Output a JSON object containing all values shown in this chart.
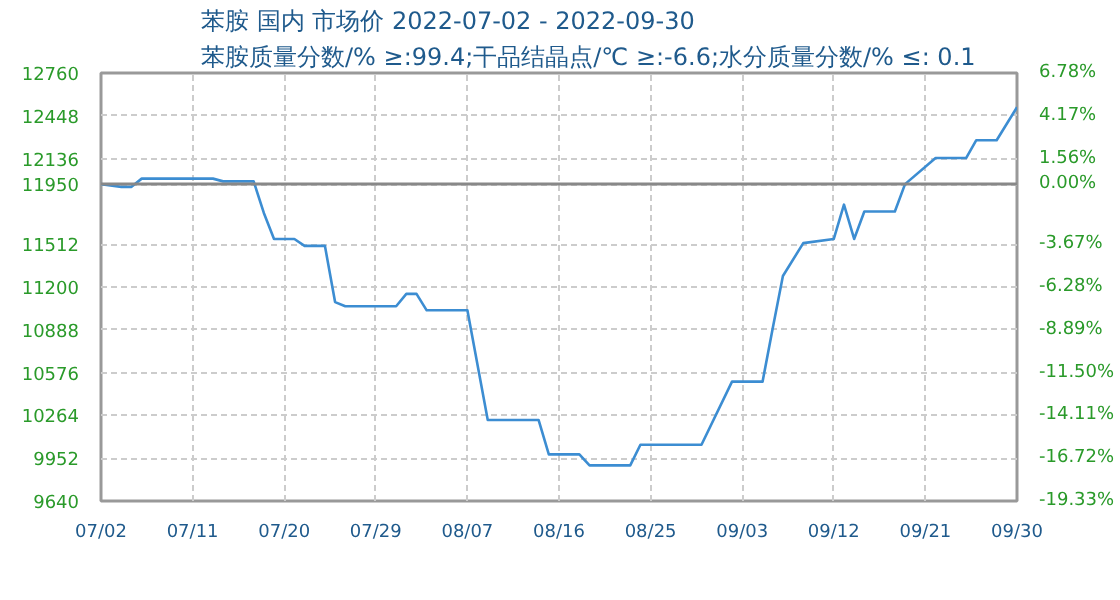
{
  "chart_data": {
    "type": "line",
    "title": "苯胺 国内 市场价 2022-07-02 - 2022-09-30",
    "subtitle": "苯胺质量分数/% ≥:99.4;干品结晶点/℃  ≥:-6.6;水分质量分数/%  ≤: 0.1",
    "x": [
      "2022-07-02",
      "2022-07-04",
      "2022-07-05",
      "2022-07-06",
      "2022-07-13",
      "2022-07-14",
      "2022-07-17",
      "2022-07-18",
      "2022-07-19",
      "2022-07-21",
      "2022-07-22",
      "2022-07-24",
      "2022-07-25",
      "2022-07-26",
      "2022-07-31",
      "2022-08-01",
      "2022-08-02",
      "2022-08-03",
      "2022-08-07",
      "2022-08-09",
      "2022-08-14",
      "2022-08-15",
      "2022-08-18",
      "2022-08-19",
      "2022-08-23",
      "2022-08-24",
      "2022-08-30",
      "2022-09-02",
      "2022-09-05",
      "2022-09-06",
      "2022-09-07",
      "2022-09-09",
      "2022-09-12",
      "2022-09-13",
      "2022-09-14",
      "2022-09-15",
      "2022-09-18",
      "2022-09-19",
      "2022-09-22",
      "2022-09-25",
      "2022-09-26",
      "2022-09-28",
      "2022-09-30"
    ],
    "series": [
      {
        "color": "#3c8dd2",
        "values": [
          11950,
          11930,
          11930,
          11990,
          11990,
          11970,
          11970,
          11740,
          11550,
          11550,
          11500,
          11500,
          11090,
          11060,
          11060,
          11150,
          11150,
          11030,
          11030,
          10230,
          10230,
          9980,
          9980,
          9900,
          9900,
          10050,
          10050,
          10510,
          10510,
          10900,
          11280,
          11520,
          11550,
          11800,
          11550,
          11750,
          11750,
          11950,
          12140,
          12140,
          12270,
          12270,
          12510
        ]
      }
    ],
    "xlim": [
      "2022-07-02",
      "2022-09-30"
    ],
    "xticks": [
      {
        "value": "2022-07-02",
        "label": "07/02"
      },
      {
        "value": "2022-07-11",
        "label": "07/11"
      },
      {
        "value": "2022-07-20",
        "label": "07/20"
      },
      {
        "value": "2022-07-29",
        "label": "07/29"
      },
      {
        "value": "2022-08-07",
        "label": "08/07"
      },
      {
        "value": "2022-08-16",
        "label": "08/16"
      },
      {
        "value": "2022-08-25",
        "label": "08/25"
      },
      {
        "value": "2022-09-03",
        "label": "09/03"
      },
      {
        "value": "2022-09-12",
        "label": "09/12"
      },
      {
        "value": "2022-09-21",
        "label": "09/21"
      },
      {
        "value": "2022-09-30",
        "label": "09/30"
      }
    ],
    "ylim": [
      9640,
      12760
    ],
    "yticks": [
      9640,
      9952,
      10264,
      10576,
      10888,
      11200,
      11512,
      11950,
      12136,
      12448,
      12760
    ],
    "y2lim": [
      -19.33,
      6.78
    ],
    "y2ticks": [
      {
        "value": -19.33,
        "label": "-19.33%"
      },
      {
        "value": -16.72,
        "label": "-16.72%"
      },
      {
        "value": -14.11,
        "label": "-14.11%"
      },
      {
        "value": -11.5,
        "label": "-11.50%"
      },
      {
        "value": -8.89,
        "label": "-8.89%"
      },
      {
        "value": -6.28,
        "label": "-6.28%"
      },
      {
        "value": -3.67,
        "label": "-3.67%"
      },
      {
        "value": 0,
        "label": "0.00%"
      },
      {
        "value": 1.56,
        "label": "1.56%"
      },
      {
        "value": 4.17,
        "label": "4.17%"
      },
      {
        "value": 6.78,
        "label": "6.78%"
      }
    ],
    "ref_lines": [
      {
        "axis": "y",
        "value": 11950,
        "color": "#888888"
      }
    ],
    "grid": true,
    "marker": "none",
    "line_style": "solid"
  }
}
